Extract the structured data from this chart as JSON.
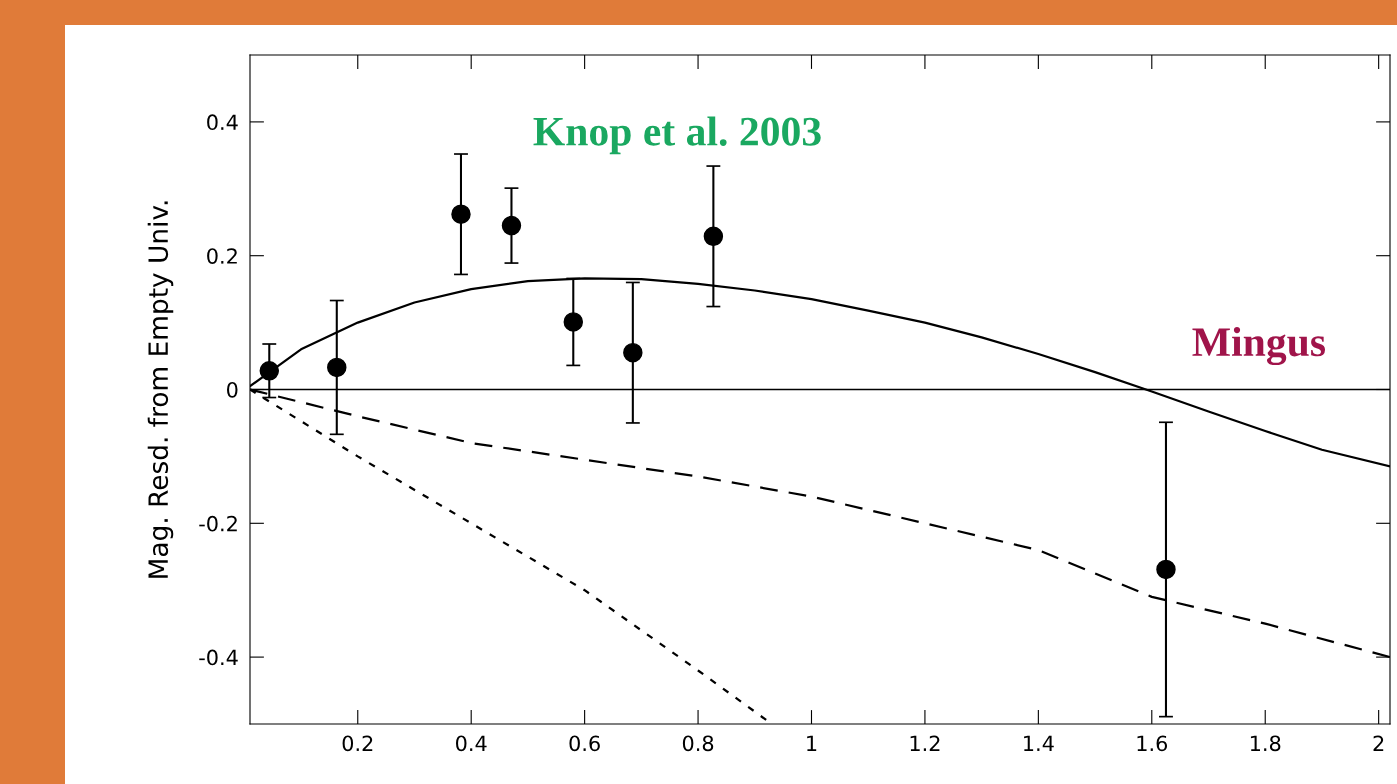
{
  "chart_data": {
    "type": "scatter",
    "ylabel": "Mag. Resd. from Empty Univ.",
    "xlim": [
      0.01,
      2.02
    ],
    "ylim": [
      -0.5,
      0.5
    ],
    "xticks": [
      0.2,
      0.4,
      0.6,
      0.8,
      1,
      1.2,
      1.4,
      1.6,
      1.8,
      2
    ],
    "yticks": [
      -0.4,
      -0.2,
      0,
      0.2,
      0.4
    ],
    "ref_lines": [
      {
        "axis": "y",
        "value": 0,
        "color": "#000000",
        "line_style": "solid"
      }
    ],
    "series": [
      {
        "color": "#000000",
        "marker": "circle",
        "x": [
          0.044,
          0.163,
          0.382,
          0.471,
          0.58,
          0.685,
          0.827,
          1.625
        ],
        "values": [
          0.028,
          0.033,
          0.262,
          0.245,
          0.101,
          0.055,
          0.229,
          -0.269
        ],
        "errors": [
          0.04,
          0.1,
          0.09,
          0.056,
          0.065,
          0.105,
          0.105,
          0.22
        ]
      },
      {
        "type": "line",
        "color": "#000000",
        "line_style": "solid",
        "x": [
          0.01,
          0.1,
          0.2,
          0.3,
          0.4,
          0.5,
          0.6,
          0.7,
          0.8,
          0.9,
          1.0,
          1.1,
          1.2,
          1.3,
          1.4,
          1.5,
          1.6,
          1.7,
          1.8,
          1.9,
          2.02
        ],
        "values": [
          0.005,
          0.06,
          0.1,
          0.13,
          0.15,
          0.162,
          0.166,
          0.165,
          0.158,
          0.148,
          0.135,
          0.118,
          0.1,
          0.078,
          0.053,
          0.026,
          -0.003,
          -0.033,
          -0.062,
          -0.09,
          -0.115
        ]
      },
      {
        "type": "line",
        "color": "#000000",
        "line_style": "dashed",
        "x": [
          0.01,
          0.2,
          0.4,
          0.6,
          0.8,
          1.0,
          1.2,
          1.4,
          1.6,
          1.8,
          2.02
        ],
        "values": [
          0,
          -0.04,
          -0.08,
          -0.105,
          -0.13,
          -0.16,
          -0.2,
          -0.24,
          -0.31,
          -0.35,
          -0.4
        ]
      },
      {
        "type": "line",
        "color": "#000000",
        "line_style": "dotted",
        "x": [
          0.01,
          0.2,
          0.4,
          0.6,
          0.8,
          0.93
        ],
        "values": [
          0,
          -0.1,
          -0.2,
          -0.3,
          -0.42,
          -0.5
        ]
      }
    ],
    "annotations": [
      "Knop et al. 2003",
      "Mingus"
    ]
  }
}
